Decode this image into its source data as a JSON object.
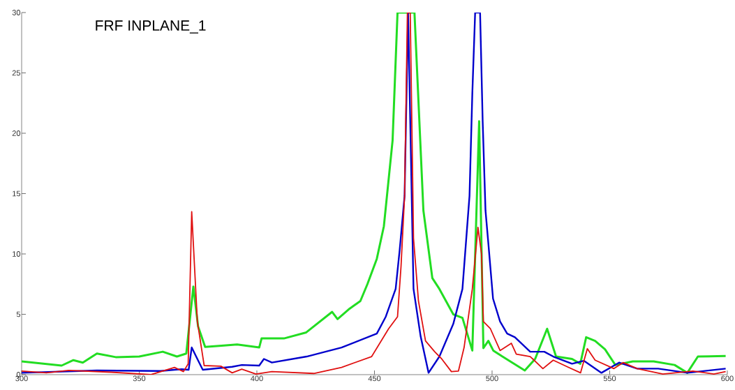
{
  "chart_data": {
    "type": "line",
    "title": "FRF INPLANE_1",
    "xlim": [
      300,
      600
    ],
    "ylim": [
      0,
      30
    ],
    "xticks": [
      300,
      350,
      400,
      450,
      500,
      550,
      600
    ],
    "yticks": [
      0,
      5,
      10,
      15,
      20,
      25,
      30
    ],
    "grid": false,
    "line_style": "solid",
    "marker": "none",
    "series": [
      {
        "color": "#22dd22",
        "x": [
          300,
          317,
          322,
          326,
          332,
          340,
          350,
          360,
          366,
          370,
          373,
          375,
          378,
          385,
          391.6,
          401,
          402,
          411.5,
          421,
          432,
          434.3,
          439,
          444,
          447,
          451,
          454,
          457.7,
          459.8,
          467,
          470.8,
          474.6,
          477.6,
          483.5,
          487.4,
          491.6,
          494.5,
          496.3,
          498.4,
          500.5,
          504.4,
          513.9,
          518.3,
          523.4,
          527.2,
          534,
          537.5,
          540,
          543.8,
          548,
          552.4,
          559.8,
          568.7,
          577.6,
          583,
          587.5,
          599.3
        ],
        "values": [
          1.1,
          0.75,
          1.2,
          1.0,
          1.75,
          1.45,
          1.5,
          1.9,
          1.5,
          1.75,
          7.3,
          4.0,
          2.3,
          2.4,
          2.5,
          2.25,
          3.0,
          3.0,
          3.5,
          5.2,
          4.6,
          5.4,
          6.1,
          7.5,
          9.6,
          12.3,
          19.4,
          30,
          30,
          13.6,
          8.0,
          7.1,
          5.0,
          4.7,
          2.0,
          21.0,
          2.2,
          2.8,
          2.0,
          1.5,
          0.35,
          1.3,
          3.8,
          1.5,
          1.3,
          0.9,
          3.1,
          2.8,
          2.1,
          0.8,
          1.1,
          1.1,
          0.8,
          0.15,
          1.5,
          1.55
        ]
      },
      {
        "color": "#0000cc",
        "x": [
          300,
          332,
          359,
          368,
          371,
          372.3,
          374.7,
          377,
          389.5,
          393.6,
          401,
          403,
          406.4,
          421.2,
          436,
          451,
          454.8,
          459,
          460.7,
          462.8,
          464.3,
          466.6,
          469.6,
          473,
          477.6,
          483.5,
          487.4,
          490.4,
          491.6,
          492.8,
          494.9,
          496,
          497.2,
          498.4,
          500.4,
          503.4,
          506.4,
          509.7,
          516.2,
          522.2,
          526,
          534,
          539,
          546.5,
          554,
          561.7,
          570.6,
          583,
          592.5,
          599.3
        ],
        "values": [
          0.15,
          0.35,
          0.3,
          0.45,
          0.4,
          2.25,
          1.3,
          0.4,
          0.65,
          0.8,
          0.75,
          1.3,
          1.0,
          1.5,
          2.25,
          3.4,
          4.8,
          7.1,
          10.3,
          14.8,
          30,
          7.1,
          3.2,
          0.15,
          1.5,
          4.2,
          7.1,
          14.8,
          23.3,
          30,
          30,
          21.0,
          13.6,
          10.9,
          6.3,
          4.4,
          3.4,
          3.1,
          1.9,
          1.9,
          1.5,
          0.9,
          1.15,
          0.15,
          1.0,
          0.5,
          0.5,
          0.15,
          0.35,
          0.5
        ]
      },
      {
        "color": "#e01010",
        "x": [
          300,
          310.5,
          320,
          338,
          355,
          365,
          368.8,
          370.8,
          372.3,
          374.7,
          377.6,
          384.7,
          389.5,
          393.6,
          399.6,
          406.4,
          424.2,
          436,
          448.8,
          456,
          459.8,
          461.3,
          462.8,
          464,
          465.2,
          466.6,
          468.7,
          471.7,
          475.6,
          478.6,
          482.7,
          485.7,
          488.1,
          491.6,
          494,
          495.5,
          496.3,
          499.3,
          503.4,
          508.2,
          510.3,
          516.2,
          521.6,
          526,
          532,
          537.6,
          540.5,
          543.8,
          551.8,
          555.7,
          561.7,
          572.6,
          585.4,
          594.3,
          599.3
        ],
        "values": [
          0.3,
          0.15,
          0.35,
          0.2,
          0.0,
          0.6,
          0.25,
          0.9,
          13.5,
          4.4,
          0.75,
          0.7,
          0.15,
          0.45,
          0.05,
          0.25,
          0.1,
          0.6,
          1.5,
          3.8,
          4.8,
          9.0,
          14.8,
          30,
          30,
          11.3,
          6.1,
          2.8,
          1.9,
          1.3,
          0.25,
          0.3,
          2.25,
          7.1,
          12.2,
          10.0,
          4.4,
          3.8,
          2.0,
          2.6,
          1.7,
          1.5,
          0.5,
          1.2,
          0.65,
          0.15,
          2.15,
          1.2,
          0.5,
          1.0,
          0.5,
          0.05,
          0.3,
          0.05,
          0.25
        ]
      }
    ]
  }
}
